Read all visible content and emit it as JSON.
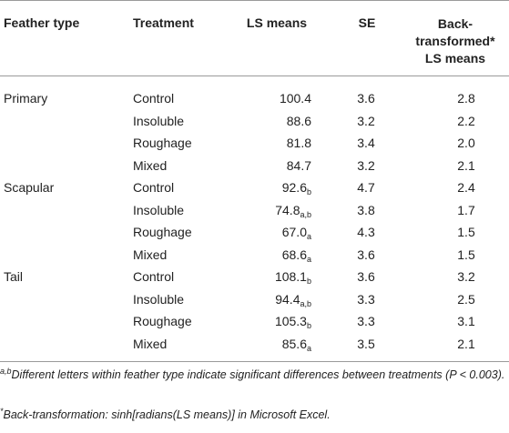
{
  "header": {
    "feather_type": "Feather type",
    "treatment": "Treatment",
    "ls_means": "LS means",
    "se": "SE",
    "back_transformed": "Back-transformed* LS means"
  },
  "rows": [
    {
      "feather": "Primary",
      "treatment": "Control",
      "mean": "100.4",
      "sub": "",
      "se": "3.6",
      "bt": "2.8"
    },
    {
      "feather": "",
      "treatment": "Insoluble",
      "mean": "88.6",
      "sub": "",
      "se": "3.2",
      "bt": "2.2"
    },
    {
      "feather": "",
      "treatment": "Roughage",
      "mean": "81.8",
      "sub": "",
      "se": "3.4",
      "bt": "2.0"
    },
    {
      "feather": "",
      "treatment": "Mixed",
      "mean": "84.7",
      "sub": "",
      "se": "3.2",
      "bt": "2.1"
    },
    {
      "feather": "Scapular",
      "treatment": "Control",
      "mean": "92.6",
      "sub": "b",
      "se": "4.7",
      "bt": "2.4"
    },
    {
      "feather": "",
      "treatment": "Insoluble",
      "mean": "74.8",
      "sub": "a,b",
      "se": "3.8",
      "bt": "1.7"
    },
    {
      "feather": "",
      "treatment": "Roughage",
      "mean": "67.0",
      "sub": "a",
      "se": "4.3",
      "bt": "1.5"
    },
    {
      "feather": "",
      "treatment": "Mixed",
      "mean": "68.6",
      "sub": "a",
      "se": "3.6",
      "bt": "1.5"
    },
    {
      "feather": "Tail",
      "treatment": "Control",
      "mean": "108.1",
      "sub": "b",
      "se": "3.6",
      "bt": "3.2"
    },
    {
      "feather": "",
      "treatment": "Insoluble",
      "mean": "94.4",
      "sub": "a,b",
      "se": "3.3",
      "bt": "2.5"
    },
    {
      "feather": "",
      "treatment": "Roughage",
      "mean": "105.3",
      "sub": "b",
      "se": "3.3",
      "bt": "3.1"
    },
    {
      "feather": "",
      "treatment": "Mixed",
      "mean": "85.6",
      "sub": "a",
      "se": "3.5",
      "bt": "2.1"
    }
  ],
  "footnotes": {
    "note1_marker": "a,b",
    "note1_text": "Different letters within feather type indicate significant differences between treatments (P < 0.003).",
    "note2_marker": "*",
    "note2_text": "Back-transformation: sinh[radians(LS means)] in Microsoft Excel."
  }
}
